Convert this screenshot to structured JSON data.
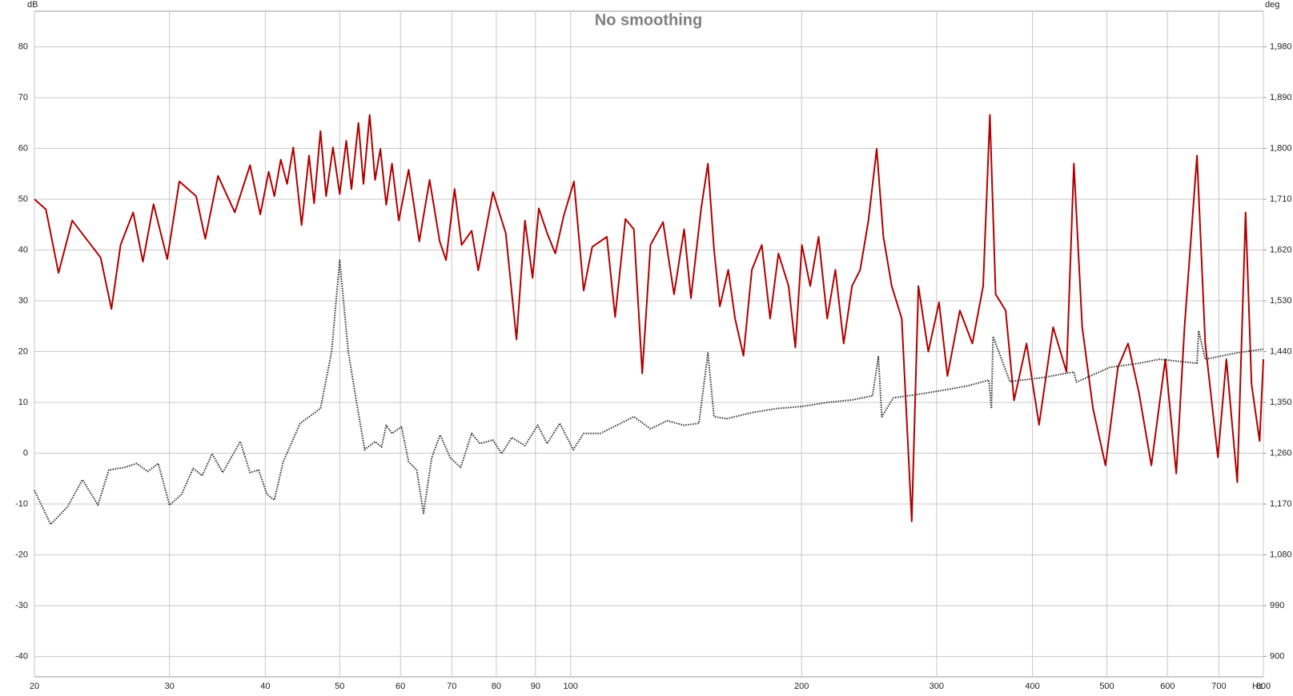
{
  "chart_data": {
    "type": "line",
    "title": "No smoothing",
    "y_label": "dB",
    "y2_label": "deg",
    "x_unit": "Hz",
    "log_x": true,
    "grid": true,
    "xlim": [
      20,
      800
    ],
    "xticks": [
      20,
      30,
      40,
      50,
      60,
      70,
      80,
      90,
      100,
      200,
      300,
      400,
      500,
      600,
      700,
      800
    ],
    "ylim": [
      -44,
      87
    ],
    "yticks": [
      -40,
      -30,
      -20,
      -10,
      0,
      10,
      20,
      30,
      40,
      50,
      60,
      70,
      80
    ],
    "y2lim": [
      864,
      2043
    ],
    "y2ticks": [
      900,
      990,
      {
        "value": 1080,
        "label": "1,080"
      },
      {
        "value": 1170,
        "label": "1,170"
      },
      {
        "value": 1260,
        "label": "1,260"
      },
      {
        "value": 1350,
        "label": "1,350"
      },
      {
        "value": 1440,
        "label": "1,440"
      },
      {
        "value": 1530,
        "label": "1,530"
      },
      {
        "value": 1620,
        "label": "1,620"
      },
      {
        "value": 1710,
        "label": "1,710"
      },
      {
        "value": 1800,
        "label": "1,800"
      },
      {
        "value": 1890,
        "label": "1,890"
      },
      {
        "value": 1980,
        "label": "1,980"
      }
    ],
    "series": [
      {
        "color": "#b00000",
        "line_style": "solid",
        "x": [
          20,
          20.7,
          21.5,
          22.4,
          23.7,
          24.4,
          25.2,
          25.9,
          26.9,
          27.7,
          28.6,
          29.8,
          30.9,
          32.5,
          33.4,
          34.7,
          36.5,
          38.2,
          39.4,
          40.4,
          41.1,
          41.9,
          42.7,
          43.5,
          44.6,
          45.6,
          46.3,
          47.2,
          48,
          49,
          50,
          51,
          51.8,
          52.9,
          53.7,
          54.7,
          55.6,
          56.5,
          57.5,
          58.5,
          59.7,
          61.5,
          63.5,
          65.5,
          67.5,
          68.8,
          70.6,
          72.1,
          74.3,
          75.8,
          79.2,
          82.3,
          85,
          87.2,
          89.2,
          90.9,
          93.2,
          95.5,
          97.9,
          101,
          104,
          106.7,
          111.5,
          114.3,
          117.9,
          120.9,
          124,
          127.1,
          132,
          136.4,
          140.6,
          143.5,
          148,
          151,
          153.8,
          156.5,
          160.5,
          163.8,
          168,
          172.3,
          177.5,
          182,
          186.6,
          192.4,
          196.3,
          200.2,
          205.3,
          210.5,
          216,
          221.4,
          227,
          232.7,
          238.5,
          244.5,
          250.6,
          255.7,
          262.2,
          270.2,
          278.4,
          284,
          292.6,
          302.2,
          309.9,
          321.7,
          334,
          345,
          352,
          358.2,
          369.1,
          378.5,
          393,
          408,
          425.6,
          443,
          453,
          464.4,
          479.7,
          498,
          517,
          533,
          550.6,
          571.6,
          596,
          616,
          631.4,
          655.5,
          672,
          698,
          716,
          739.8,
          758.5,
          772,
          791,
          800
        ],
        "values": [
          50,
          48,
          35.5,
          45.8,
          41,
          38.5,
          28.4,
          41,
          47.4,
          37.7,
          49,
          38.2,
          53.5,
          50.6,
          42.2,
          54.6,
          47.4,
          56.7,
          47,
          55.4,
          50.6,
          57.8,
          53,
          60.2,
          44.9,
          58.6,
          49.2,
          63.4,
          50.6,
          60.2,
          51,
          61.5,
          52,
          65,
          53,
          66.6,
          53.8,
          59.9,
          48.9,
          57,
          45.8,
          55.8,
          41.7,
          53.8,
          41.7,
          38,
          52,
          41,
          43.8,
          36,
          51.4,
          43.3,
          22.4,
          45.8,
          34.5,
          48.2,
          43.3,
          39.3,
          46.6,
          53.5,
          32,
          40.6,
          42.6,
          26.8,
          46.1,
          44.1,
          15.7,
          41,
          45.5,
          31.3,
          44.1,
          30.5,
          48.2,
          57,
          40.2,
          28.9,
          36.1,
          26.5,
          19.2,
          36.1,
          41,
          26.5,
          39.3,
          32.9,
          20.8,
          41,
          32.9,
          42.6,
          26.5,
          36.1,
          21.6,
          32.9,
          36.1,
          45.8,
          59.9,
          42.6,
          32.9,
          26.5,
          -13.4,
          32.9,
          20,
          29.7,
          15.2,
          28.1,
          21.6,
          32.9,
          66.6,
          31.3,
          28.1,
          10.4,
          21.6,
          5.6,
          24.8,
          16,
          57,
          24.8,
          8.8,
          -2.4,
          16.9,
          21.6,
          12,
          -2.4,
          18.5,
          -4,
          24.8,
          58.6,
          21.6,
          -0.8,
          18.5,
          -5.7,
          47.4,
          13.6,
          2.4,
          18.5
        ]
      },
      {
        "color": "#333333",
        "line_style": "dotted",
        "x": [
          20,
          21,
          22.1,
          23.1,
          24.2,
          25,
          26.2,
          27.2,
          28.1,
          29,
          30,
          31.1,
          32.2,
          33.1,
          34.1,
          35.2,
          37.1,
          38.2,
          39.2,
          40.2,
          41.1,
          42.2,
          44.4,
          47.2,
          48.8,
          50,
          51.3,
          52.6,
          53.9,
          55.6,
          56.7,
          57.5,
          58.5,
          60.2,
          61.5,
          63,
          64.3,
          65.9,
          67.6,
          69.7,
          71.9,
          74.3,
          76.2,
          79.2,
          81.3,
          83.8,
          87.2,
          90.6,
          93.2,
          96.8,
          100.8,
          104,
          109.3,
          114.9,
          120.9,
          127.1,
          133.6,
          140.6,
          147,
          151,
          153.8,
          159.7,
          172.3,
          185.6,
          200.2,
          216,
          232.7,
          247.5,
          251.9,
          254.5,
          263.5,
          284,
          306,
          330,
          351,
          353.6,
          355.4,
          373.8,
          413.2,
          453,
          456.4,
          504.5,
          550.6,
          585.8,
          655.5,
          658.8,
          672,
          735.3,
          800
        ],
        "values": [
          -7.3,
          -14,
          -10.5,
          -5.2,
          -10.2,
          -3.3,
          -2.8,
          -2,
          -3.6,
          -2,
          -10.2,
          -8.1,
          -3,
          -4.4,
          -0.1,
          -3.8,
          2.3,
          -3.8,
          -3.3,
          -8.1,
          -9.2,
          -1.7,
          5.9,
          8.8,
          20,
          38,
          20,
          10,
          0.7,
          2.3,
          1.2,
          5.5,
          3.9,
          5.2,
          -1.7,
          -3.3,
          -11.8,
          -0.9,
          3.6,
          -0.9,
          -2.8,
          3.9,
          1.9,
          2.6,
          -0.1,
          3.1,
          1.5,
          5.5,
          1.9,
          5.9,
          0.7,
          3.9,
          3.9,
          5.5,
          7.2,
          4.8,
          6.4,
          5.5,
          5.9,
          19.7,
          7.2,
          6.8,
          8,
          8.8,
          9.2,
          10,
          10.5,
          11.3,
          19,
          7.2,
          10.9,
          11.6,
          12.4,
          13.3,
          14.4,
          8.8,
          23,
          14.1,
          14.9,
          16,
          14,
          16.9,
          17.7,
          18.5,
          17.7,
          24.1,
          18.5,
          19.7,
          20.5
        ]
      }
    ]
  }
}
